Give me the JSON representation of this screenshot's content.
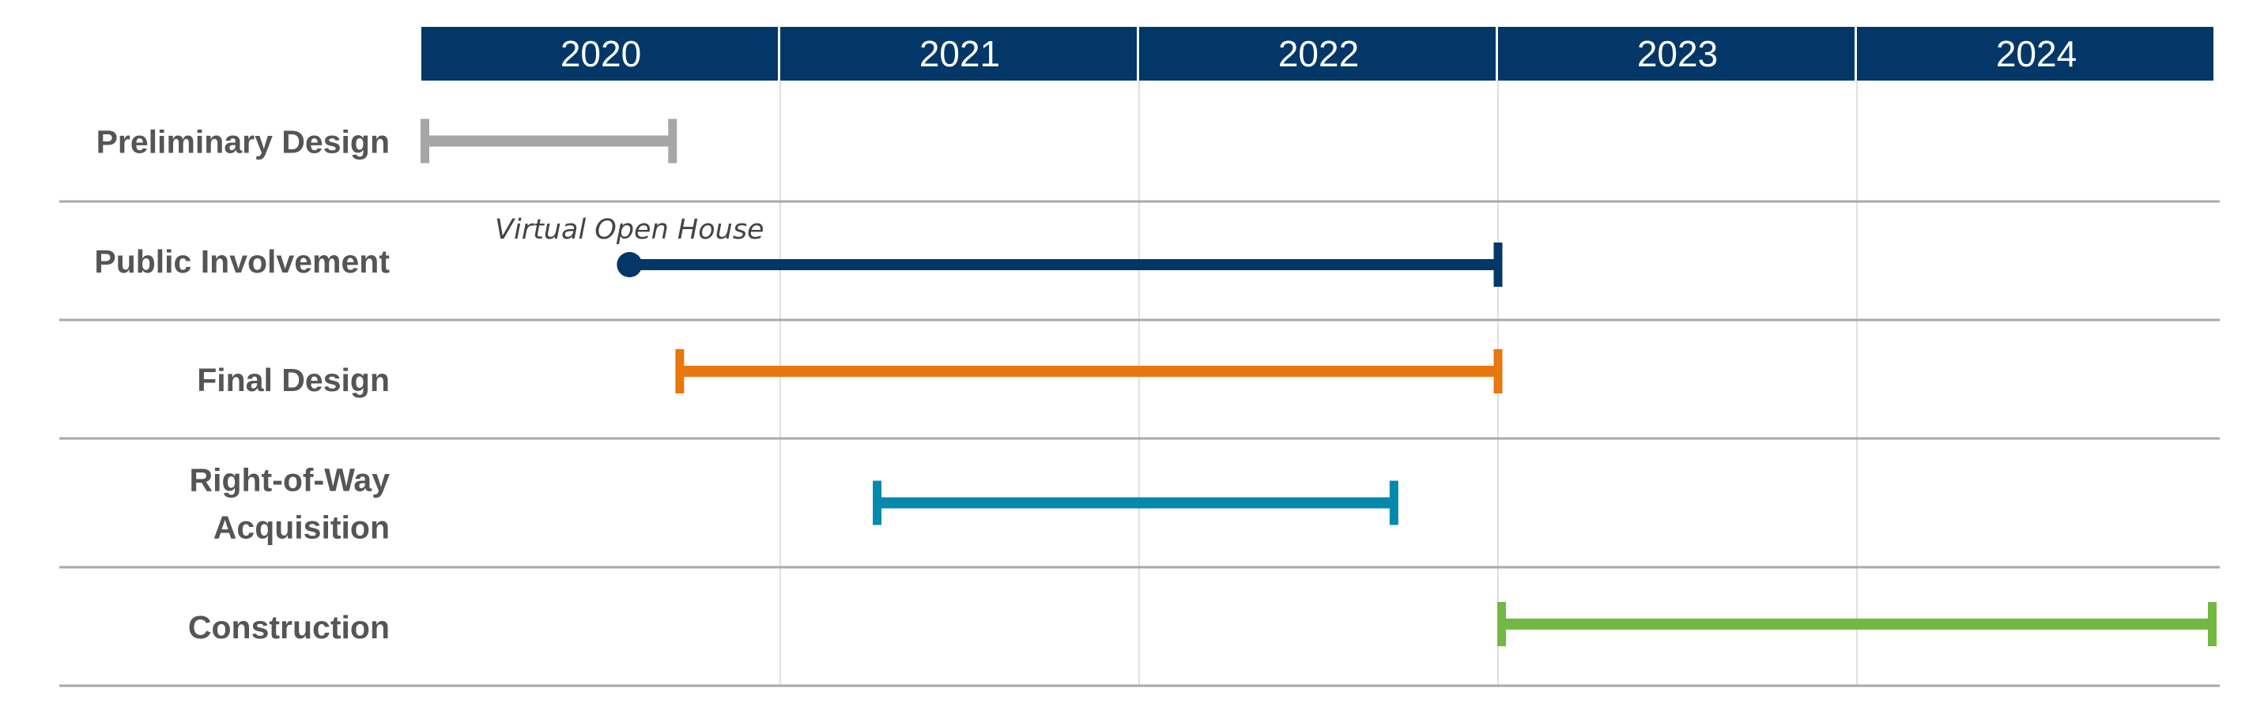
{
  "chart_data": {
    "type": "gantt",
    "title": "",
    "x_axis": {
      "type": "time",
      "tick_labels": [
        "2020",
        "2021",
        "2022",
        "2023",
        "2024"
      ],
      "range_years": [
        2020,
        2025
      ]
    },
    "header_color": "#033767",
    "rows": [
      {
        "label_lines": [
          "Preliminary Design"
        ],
        "start": 2020.01,
        "end": 2020.7,
        "color": "#a6a6a8",
        "start_marker": "tick",
        "end_marker": "tick"
      },
      {
        "label_lines": [
          "Public Involvement"
        ],
        "start": 2020.58,
        "end": 2023.0,
        "color": "#033767",
        "start_marker": "dot",
        "end_marker": "tick",
        "annotation": "Virtual Open House"
      },
      {
        "label_lines": [
          "Final Design"
        ],
        "start": 2020.72,
        "end": 2023.0,
        "color": "#e8770e",
        "start_marker": "tick",
        "end_marker": "tick"
      },
      {
        "label_lines": [
          "Right-of-Way",
          "Acquisition"
        ],
        "start": 2021.27,
        "end": 2022.71,
        "color": "#0289ad",
        "start_marker": "tick",
        "end_marker": "tick"
      },
      {
        "label_lines": [
          "Construction"
        ],
        "start": 2023.01,
        "end": 2024.99,
        "color": "#72b843",
        "start_marker": "tick",
        "end_marker": "tick"
      }
    ],
    "grid": true,
    "legend": "none"
  }
}
